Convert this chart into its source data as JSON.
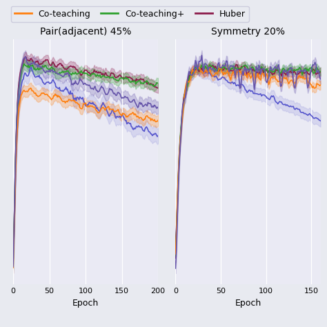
{
  "legend_labels": [
    "Co-teaching",
    "Co-teaching+",
    "Huber"
  ],
  "plot1_title": "Pair(adjacent) 45%",
  "plot2_title": "Symmetry 20%",
  "xlabel": "Epoch",
  "bg_color": "#E8EAF0",
  "ax_bg_color": "#EAEAF4",
  "plot1_xlim": [
    0,
    200
  ],
  "plot2_xlim": [
    0,
    160
  ],
  "plot1_xticks": [
    0,
    50,
    100,
    150,
    200
  ],
  "plot2_xticks": [
    0,
    50,
    100,
    150
  ],
  "blue_color": "#5555CC",
  "blue_fill_color": "#9999DD",
  "co_teaching_color": "#FF7F0E",
  "co_teaching_plus_color": "#2CA02C",
  "huber_color": "#8B1A4A",
  "purple_color": "#6655AA"
}
